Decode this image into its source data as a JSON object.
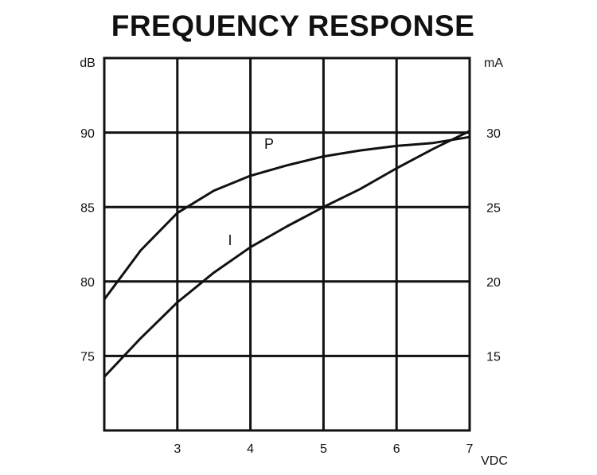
{
  "chart_data": {
    "type": "line",
    "title": "FREQUENCY RESPONSE",
    "y_label": "dB",
    "y2_label": "mA",
    "x_label": "VDC",
    "x": [
      2,
      2.5,
      3,
      3.5,
      4,
      4.5,
      5,
      5.5,
      6,
      6.5,
      7
    ],
    "xlim": [
      2,
      7
    ],
    "xticks": [
      3,
      4,
      5,
      6,
      7
    ],
    "ylim": [
      70,
      95
    ],
    "yticks": [
      75,
      80,
      85,
      90
    ],
    "y2lim": [
      10,
      35
    ],
    "y2ticks": [
      15,
      20,
      25,
      30
    ],
    "grid": true,
    "series": [
      {
        "name": "P",
        "color": "#111111",
        "values": [
          78.8,
          82.1,
          84.6,
          86.1,
          87.1,
          87.8,
          88.4,
          88.8,
          89.1,
          89.3,
          89.7
        ]
      },
      {
        "name": "I",
        "color": "#111111",
        "axis": "y2",
        "values": [
          13.6,
          16.2,
          18.6,
          20.6,
          22.3,
          23.7,
          25.0,
          26.2,
          27.6,
          28.9,
          30.1
        ]
      }
    ]
  }
}
